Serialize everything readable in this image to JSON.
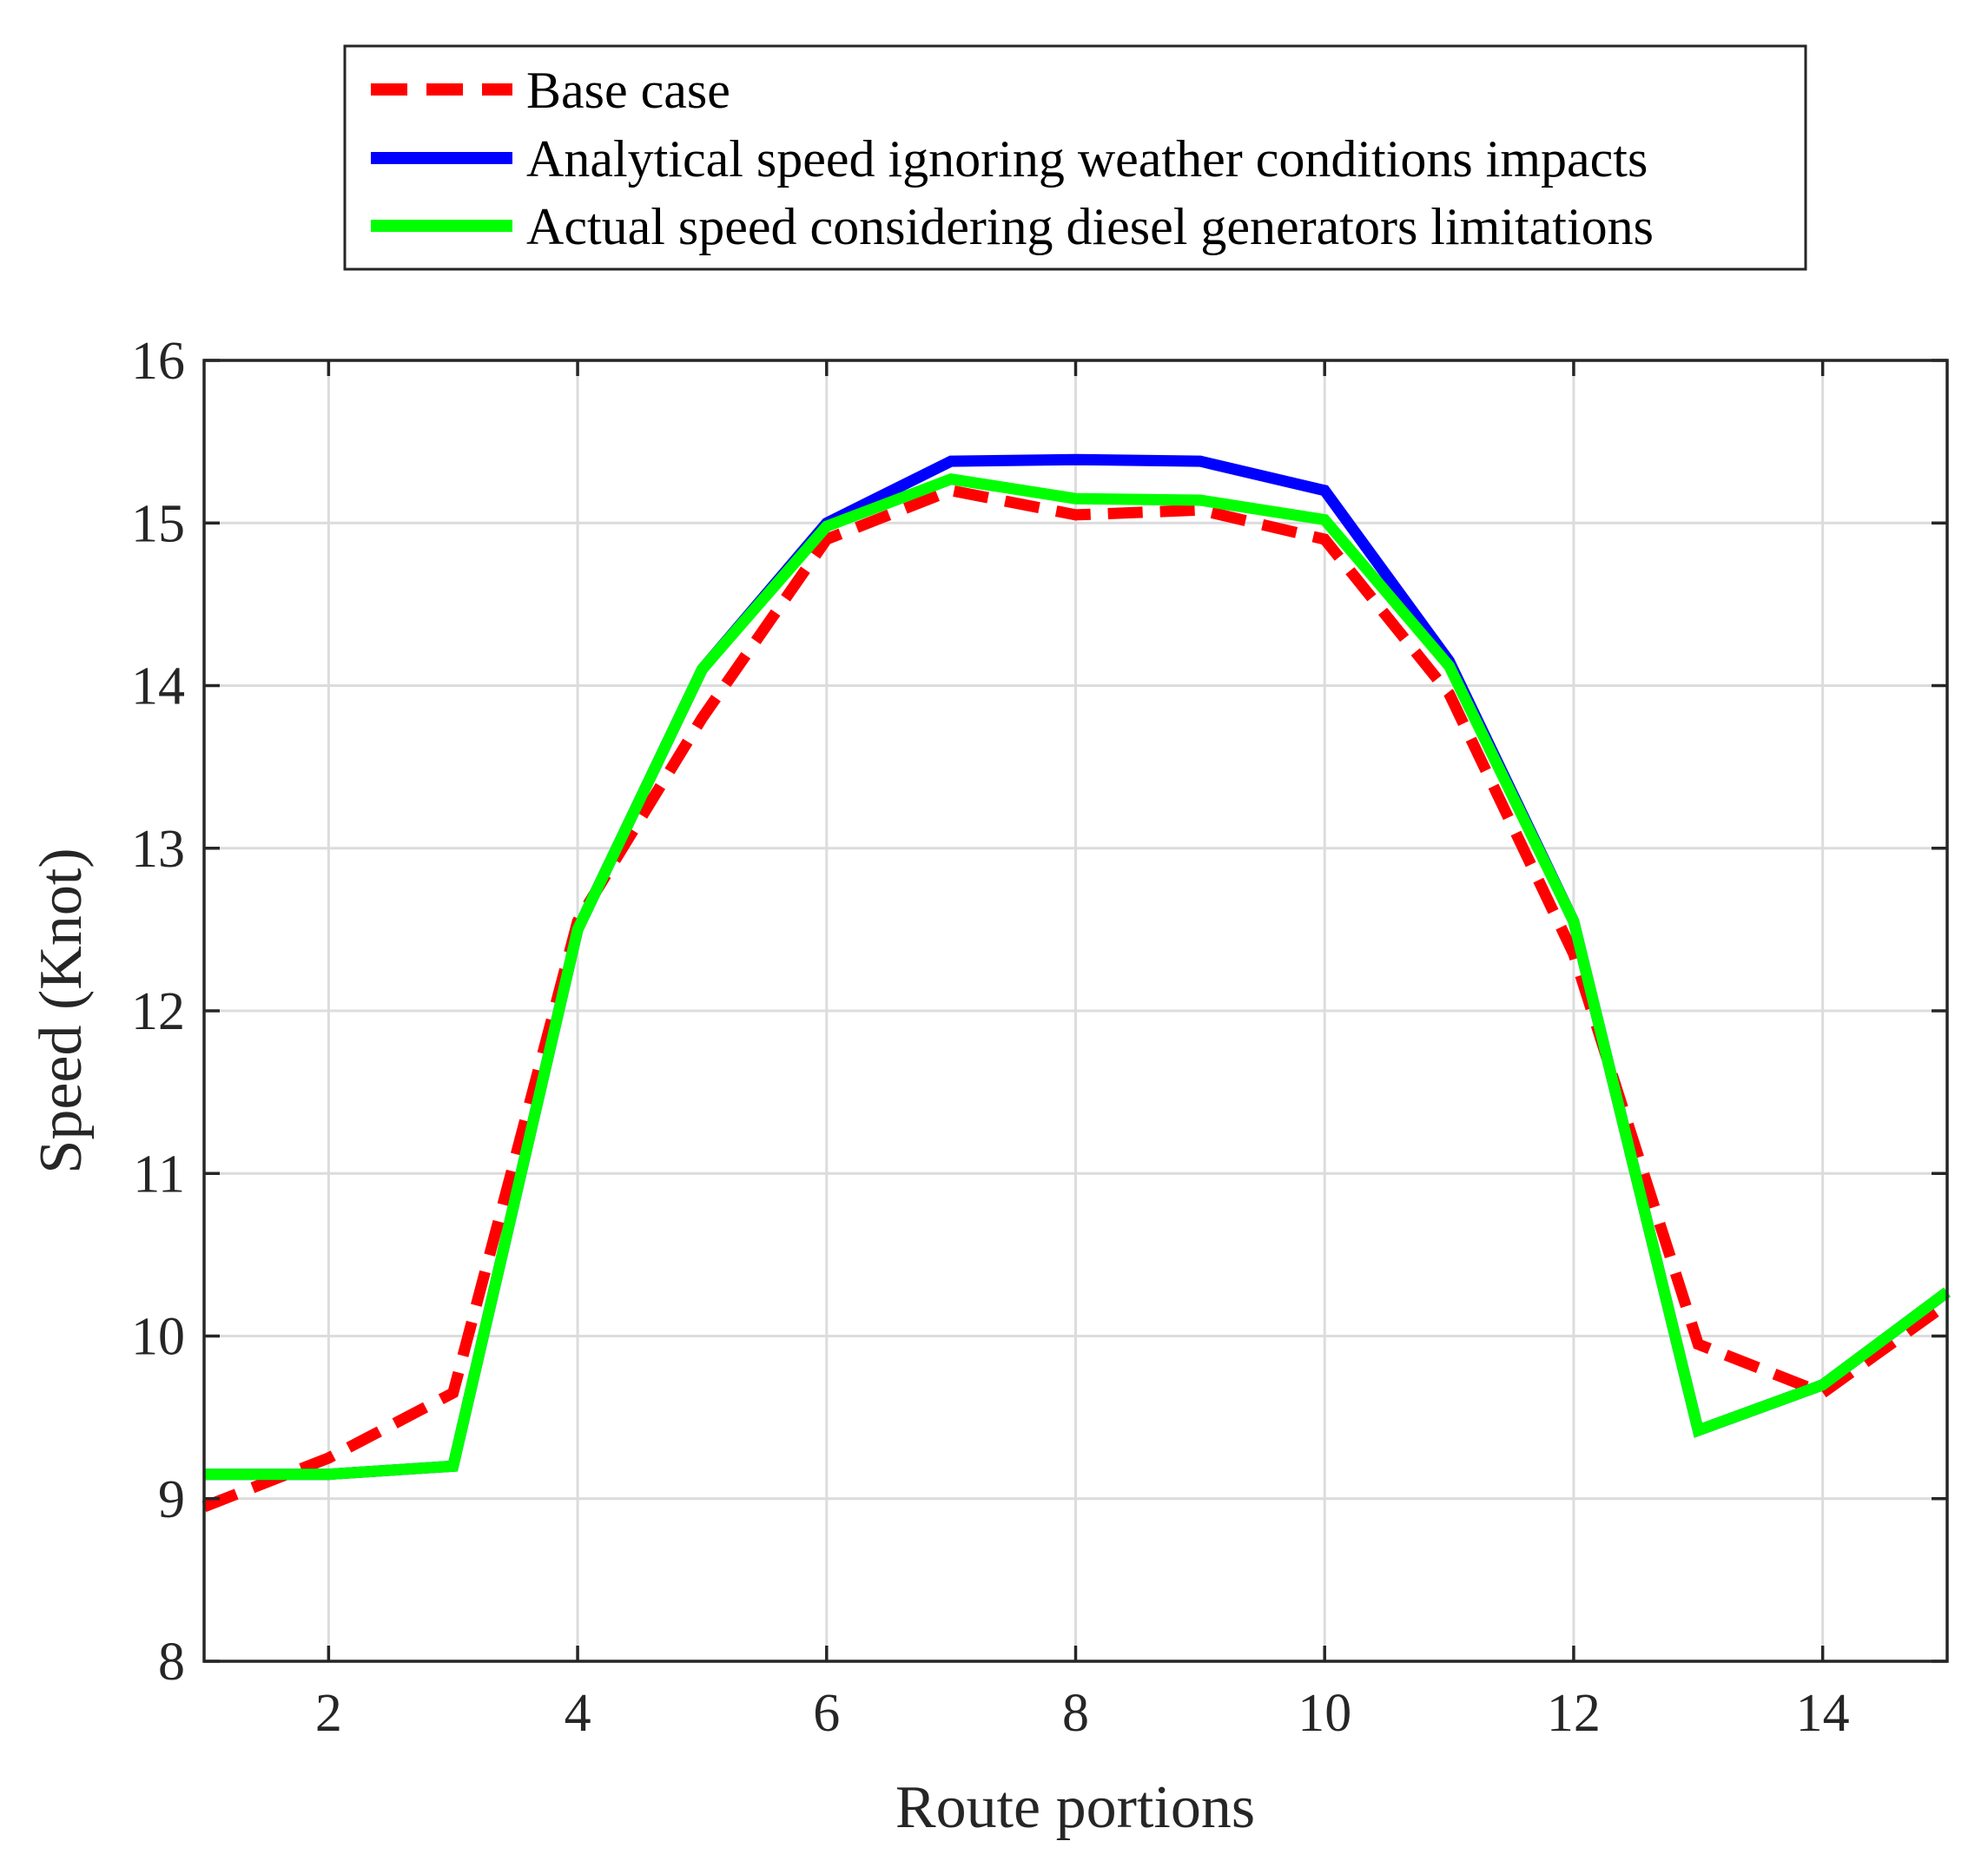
{
  "chart_data": {
    "type": "line",
    "title": "",
    "xlabel": "Route portions",
    "ylabel": "Speed (Knot)",
    "xlim": [
      1,
      15
    ],
    "ylim": [
      8,
      16
    ],
    "xticks": [
      2,
      4,
      6,
      8,
      10,
      12,
      14
    ],
    "yticks": [
      8,
      9,
      10,
      11,
      12,
      13,
      14,
      15,
      16
    ],
    "grid": true,
    "legend_position": "top-center, outside plot",
    "x": [
      1,
      2,
      3,
      4,
      5,
      6,
      7,
      8,
      9,
      10,
      11,
      12,
      13,
      14,
      15
    ],
    "series": [
      {
        "name": "Base case",
        "color": "#ff0000",
        "style": "dashed",
        "values": [
          8.95,
          9.25,
          9.65,
          12.55,
          13.8,
          14.9,
          15.2,
          15.05,
          15.08,
          14.9,
          13.95,
          12.35,
          9.95,
          9.65,
          10.2
        ]
      },
      {
        "name": "Analytical speed ignoring weather conditions impacts",
        "color": "#0000ff",
        "style": "solid",
        "values": [
          9.15,
          9.15,
          9.2,
          12.5,
          14.1,
          15.0,
          15.38,
          15.39,
          15.38,
          15.2,
          14.15,
          12.55,
          9.42,
          9.7,
          10.27
        ]
      },
      {
        "name": "Actual speed considering diesel generators limitations",
        "color": "#00ff00",
        "style": "solid",
        "values": [
          9.15,
          9.15,
          9.2,
          12.5,
          14.1,
          14.98,
          15.27,
          15.15,
          15.14,
          15.02,
          14.12,
          12.55,
          9.42,
          9.7,
          10.27
        ]
      }
    ]
  }
}
